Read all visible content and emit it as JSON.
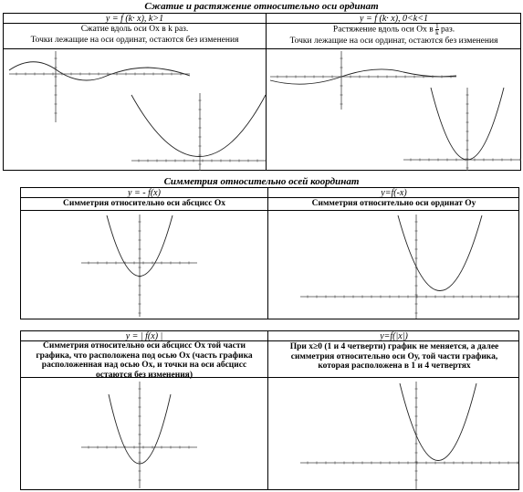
{
  "section1": {
    "title": "Сжатие и растяжение относительно оси ординат",
    "left": {
      "header": "y = f (k· x),  k>1",
      "line1": "Сжатие вдоль оси  Ох в k раз.",
      "line2": "Точки лежащие на оси ординат, остаются без изменения"
    },
    "right": {
      "header": "y = f (k· x),  0<k<1",
      "line1_pre": "Растяжение вдоль оси  Ох в",
      "frac_num": "1",
      "frac_den": "k",
      "line1_post": "раз.",
      "line2": "Точки лежащие на оси ординат, остаются без изменения"
    }
  },
  "section2": {
    "title": "Симметрия относительно осей координат",
    "left": {
      "header": "y = - f(x)",
      "desc": "Симметрия относительно оси абсцисс Ох"
    },
    "right": {
      "header": "y=f(-x)",
      "desc": "Симметрия относительно оси ординат Оу"
    }
  },
  "section3": {
    "left": {
      "header": "y = | f(x) |",
      "desc": "Симметрия относительно оси абсцисс Ох той части графика, что расположена под осью Ох (часть графика расположенная над осью Ох, и точки на оси абсцисс остаются без изменения)"
    },
    "right": {
      "header": "y=f(|x|)",
      "desc": "При x≥0 (1 и 4 четверти) график не меняется, а далее симметрия относительно оси Оу, той части графика, которая расположена в 1 и 4 четвертях"
    }
  }
}
